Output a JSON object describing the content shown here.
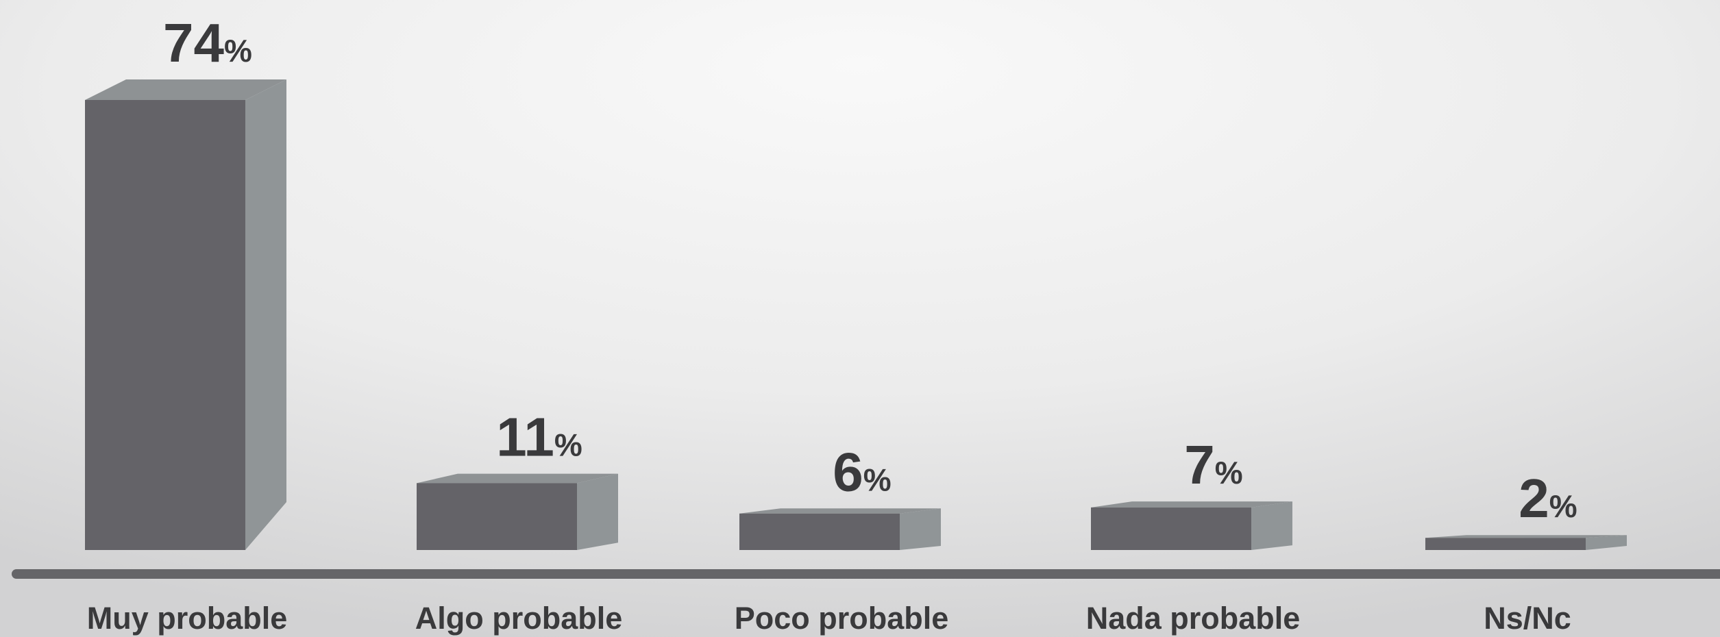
{
  "chart_data": {
    "type": "bar",
    "categories": [
      "Muy probable",
      "Algo probable",
      "Poco probable",
      "Nada probable",
      "Ns/Nc"
    ],
    "values": [
      74,
      11,
      6,
      7,
      2
    ],
    "value_suffix": "%",
    "title": "",
    "xlabel": "",
    "ylabel": "",
    "ylim": [
      0,
      74
    ],
    "grid": false,
    "legend": "none",
    "style": "3d-box"
  },
  "colors": {
    "bar_front": "#646368",
    "bar_side": "#909597",
    "bar_top": "#8e9294",
    "axis_line": "#656568",
    "text": "#3a3a3c",
    "background_light": "#f7f7f7",
    "background_dark": "#d3d3d4"
  }
}
